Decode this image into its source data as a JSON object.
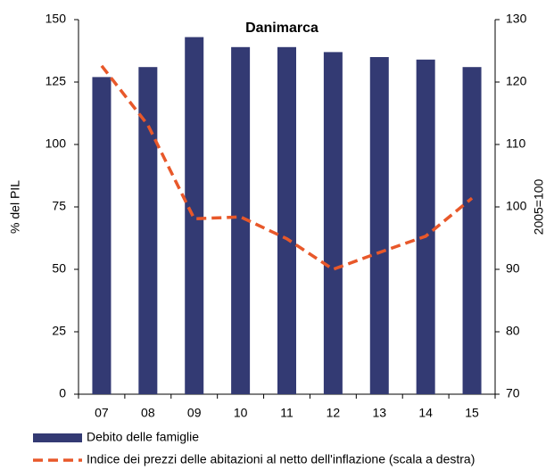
{
  "chart_data": {
    "type": "bar-line",
    "title": "Danimarca",
    "ylabel": "% del PIL",
    "y2label": "2005=100",
    "categories": [
      "07",
      "08",
      "09",
      "10",
      "11",
      "12",
      "13",
      "14",
      "15"
    ],
    "series": [
      {
        "name": "Debito delle famiglie",
        "type": "bar",
        "color": "#333a73",
        "axis": "y",
        "values": [
          127,
          131,
          143,
          139,
          139,
          137,
          135,
          134,
          131
        ]
      },
      {
        "name": "Indice dei prezzi delle abitazioni al netto dell'inflazione (scala a destra)",
        "type": "line",
        "color": "#e8582a",
        "axis": "y2",
        "dashed": true,
        "values": [
          122.6,
          113.1,
          98.1,
          98.4,
          94.9,
          90,
          92.7,
          95.3,
          101.4
        ]
      }
    ],
    "ylim": [
      0,
      150
    ],
    "yticks": [
      0,
      25,
      50,
      75,
      100,
      125,
      150
    ],
    "y2lim": [
      70,
      130
    ],
    "y2ticks": [
      70,
      80,
      90,
      100,
      110,
      120,
      130
    ],
    "grid": false
  }
}
